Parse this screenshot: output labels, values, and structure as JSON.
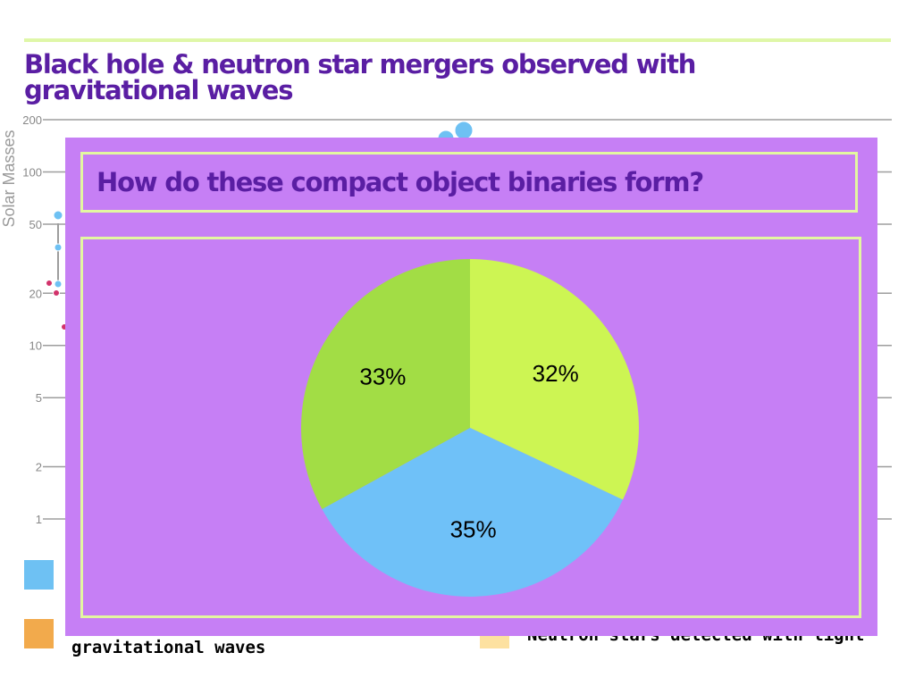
{
  "page": {
    "title": "Black hole & neutron star mergers observed with gravitational waves"
  },
  "background_chart": {
    "type": "scatter",
    "ylabel": "Solar Masses",
    "yscale": "log",
    "ytick_labels": [
      "200",
      "100",
      "50",
      "20",
      "10",
      "5",
      "2",
      "1"
    ],
    "ytick_values": [
      200,
      100,
      50,
      20,
      10,
      5,
      2,
      1
    ],
    "grid": true
  },
  "legend": {
    "items": [
      {
        "swatch_color": "#6ec1f3",
        "label": ""
      },
      {
        "swatch_color": "#f2aa4c",
        "label": "gravitational waves"
      },
      {
        "swatch_color": "#fde1a0",
        "label": "Neutron stars detected with light"
      }
    ]
  },
  "overlay": {
    "question": "How do these compact object binaries form?"
  },
  "chart_data": {
    "type": "pie",
    "title": "",
    "slices": [
      {
        "label": "32%",
        "value": 32,
        "color": "#cdf553"
      },
      {
        "label": "35%",
        "value": 35,
        "color": "#6fc1f8"
      },
      {
        "label": "33%",
        "value": 33,
        "color": "#a2dd45"
      }
    ]
  },
  "colors": {
    "title": "#5a1ea3",
    "overlay_bg": "#c67ff5",
    "frame": "#e3f7a0",
    "accent_rule": "#dff7a8",
    "dot_blue": "#6ec1f3",
    "dot_red": "#d2336b"
  }
}
